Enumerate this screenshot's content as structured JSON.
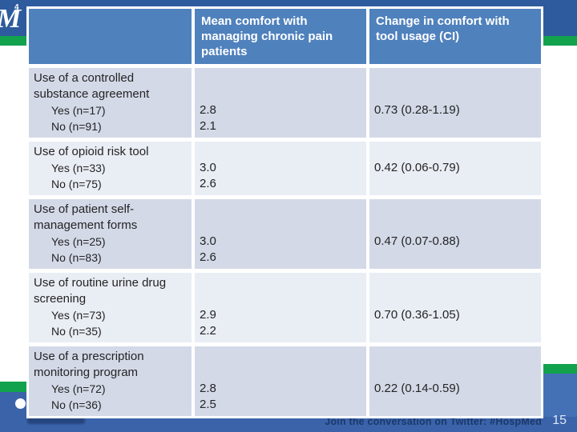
{
  "slide": {
    "logo": {
      "number": "4",
      "glyph": "M"
    },
    "footer": {
      "twitter_text": "Join the conversation on Twitter: #HospMed",
      "year_suffix": "15"
    }
  },
  "table": {
    "header": {
      "mean_comfort": "Mean comfort with managing chronic pain patients",
      "change_comfort": "Change in comfort with tool usage (CI)"
    },
    "rows": [
      {
        "title": "Use of a controlled substance agreement",
        "yes_label": "Yes (n=17)",
        "no_label": "No (n=91)",
        "yes_value": "2.8",
        "no_value": "2.1",
        "ci": "0.73 (0.28-1.19)"
      },
      {
        "title": "Use of opioid risk tool",
        "yes_label": "Yes (n=33)",
        "no_label": "No (n=75)",
        "yes_value": "3.0",
        "no_value": "2.6",
        "ci": "0.42 (0.06-0.79)"
      },
      {
        "title": "Use of patient self-management forms",
        "yes_label": "Yes (n=25)",
        "no_label": "No (n=83)",
        "yes_value": "3.0",
        "no_value": "2.6",
        "ci": "0.47 (0.07-0.88)"
      },
      {
        "title": "Use of routine urine drug screening",
        "yes_label": "Yes (n=73)",
        "no_label": "No (n=35)",
        "yes_value": "2.9",
        "no_value": "2.2",
        "ci": "0.70 (0.36-1.05)"
      },
      {
        "title": "Use of a prescription monitoring program",
        "yes_label": "Yes (n=72)",
        "no_label": "No (n=36)",
        "yes_value": "2.8",
        "no_value": "2.5",
        "ci": "0.22 (0.14-0.59)"
      }
    ]
  },
  "colors": {
    "header_blue": "#4f81bd",
    "row_band_dark": "#d3d9e7",
    "row_band_light": "#e9edf4",
    "top_bar_blue": "#2d5b9d",
    "accent_green": "#12a24d",
    "bottom_bar_blue": "#3a63aa"
  }
}
